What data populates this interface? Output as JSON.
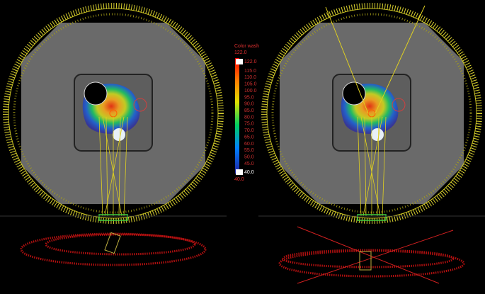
{
  "colorbar": {
    "title": "Color wash",
    "top_label": "122.0",
    "max_label": "122.0",
    "ticks": [
      "115.0",
      "110.0",
      "105.0",
      "100.0",
      "95.0",
      "90.0",
      "85.0",
      "80.0",
      "75.0",
      "70.0",
      "65.0",
      "60.0",
      "55.0",
      "50.0",
      "45.0"
    ],
    "min_label": "40.0",
    "bottom_label": "40.0"
  }
}
